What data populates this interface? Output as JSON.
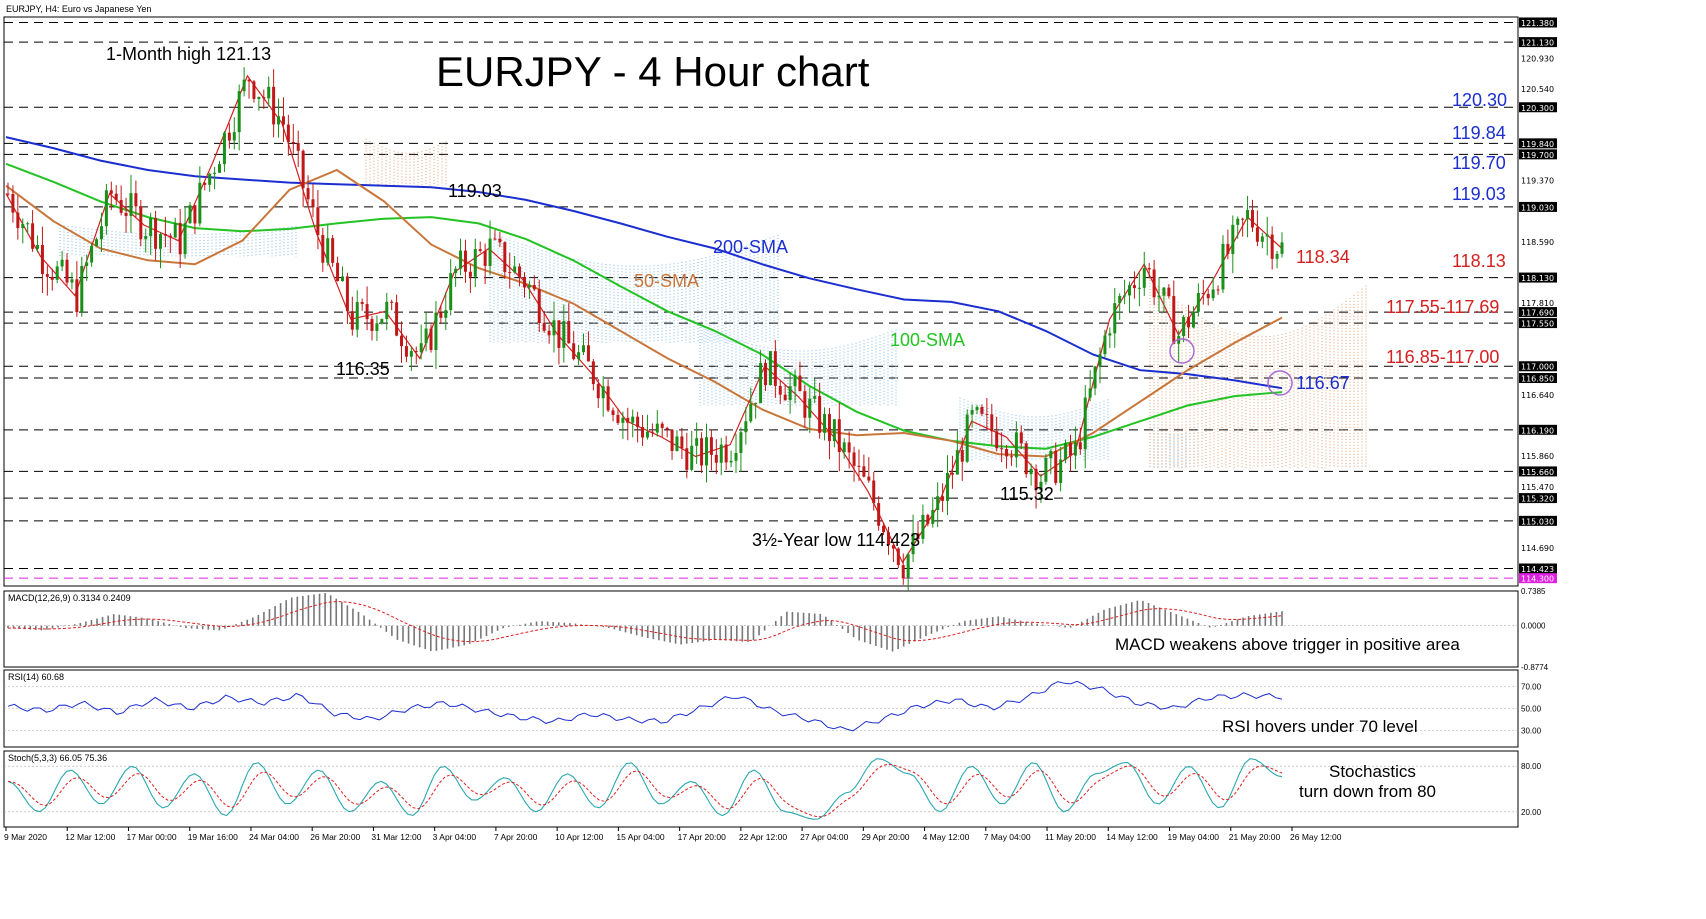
{
  "header": {
    "instrument_label": "EURJPY, H4:  Euro vs Japanese Yen"
  },
  "chart_data": [
    {
      "type": "line",
      "panel": "price",
      "title": "EURJPY - 4 Hour chart",
      "y_axis_ticks": [
        "121.380",
        "121.130",
        "120.930",
        "120.540",
        "120.300",
        "119.840",
        "119.700",
        "119.370",
        "119.030",
        "118.590",
        "118.130",
        "117.810",
        "117.690",
        "117.550",
        "117.000",
        "116.850",
        "116.640",
        "116.190",
        "115.860",
        "115.660",
        "115.470",
        "115.320",
        "115.030",
        "114.690",
        "114.423",
        "114.300"
      ],
      "highlighted_ticks": [
        "121.380",
        "121.130",
        "120.300",
        "119.840",
        "119.700",
        "119.030",
        "118.130",
        "117.690",
        "117.550",
        "117.000",
        "116.850",
        "116.190",
        "115.660",
        "115.320",
        "115.030",
        "114.423",
        "114.300"
      ],
      "ylim": [
        114.2,
        121.45
      ],
      "x_tick_labels": [
        "9 Mar 2020",
        "12 Mar 12:00",
        "17 Mar 00:00",
        "19 Mar 16:00",
        "24 Mar 04:00",
        "26 Mar 20:00",
        "31 Mar 12:00",
        "3 Apr 04:00",
        "7 Apr 20:00",
        "10 Apr 12:00",
        "15 Apr 04:00",
        "17 Apr 20:00",
        "22 Apr 12:00",
        "27 Apr 04:00",
        "29 Apr 20:00",
        "4 May 12:00",
        "7 May 04:00",
        "11 May 20:00",
        "14 May 12:00",
        "19 May 04:00",
        "21 May 20:00",
        "26 May 12:00"
      ],
      "series": [
        {
          "name": "200-SMA",
          "color": "#1b2ecf",
          "values": [
            119.92,
            119.78,
            119.62,
            119.5,
            119.42,
            119.38,
            119.34,
            119.32,
            119.3,
            119.28,
            119.22,
            119.12,
            118.98,
            118.82,
            118.65,
            118.5,
            118.3,
            118.12,
            117.98,
            117.85,
            117.82,
            117.7,
            117.45,
            117.15,
            116.95,
            116.9,
            116.82,
            116.72
          ]
        },
        {
          "name": "100-SMA",
          "color": "#22c322",
          "values": [
            119.58,
            119.35,
            119.1,
            118.9,
            118.76,
            118.72,
            118.75,
            118.82,
            118.88,
            118.9,
            118.82,
            118.62,
            118.35,
            118.02,
            117.7,
            117.45,
            117.15,
            116.75,
            116.42,
            116.18,
            116.05,
            115.98,
            115.95,
            116.1,
            116.3,
            116.5,
            116.62,
            116.67
          ]
        },
        {
          "name": "50-SMA",
          "color": "#c8763a",
          "values": [
            119.3,
            118.85,
            118.5,
            118.35,
            118.3,
            118.6,
            119.25,
            119.5,
            119.1,
            118.55,
            118.25,
            118.05,
            117.8,
            117.45,
            117.1,
            116.8,
            116.45,
            116.2,
            116.12,
            116.15,
            116.05,
            115.88,
            115.85,
            116.15,
            116.55,
            116.95,
            117.3,
            117.62
          ]
        },
        {
          "name": "Price",
          "color": "#d42020",
          "values": [
            119.2,
            118.4,
            117.9,
            119.2,
            118.8,
            118.6,
            119.6,
            120.7,
            120.1,
            118.7,
            117.6,
            117.7,
            117.1,
            118.2,
            118.5,
            118.1,
            117.4,
            116.9,
            116.3,
            116.1,
            115.85,
            116.0,
            117.0,
            116.6,
            116.1,
            115.4,
            114.5,
            115.2,
            116.3,
            116.1,
            115.6,
            115.9,
            117.6,
            118.3,
            117.4,
            118.1,
            118.9,
            118.5
          ]
        }
      ],
      "annotations": [
        "1-Month high 121.13",
        "119.03",
        "116.35",
        "200-SMA",
        "50-SMA",
        "100-SMA",
        "115.32",
        "3½-Year low 114.423"
      ],
      "right_levels": [
        {
          "label": "120.30",
          "color": "#1b2ecf"
        },
        {
          "label": "119.84",
          "color": "#1b2ecf"
        },
        {
          "label": "119.70",
          "color": "#1b2ecf"
        },
        {
          "label": "119.03",
          "color": "#1b2ecf"
        },
        {
          "label": "118.34",
          "color": "#d42020"
        },
        {
          "label": "118.13",
          "color": "#d42020"
        },
        {
          "label": "117.55-117.69",
          "color": "#d42020"
        },
        {
          "label": "116.85-117.00",
          "color": "#d42020"
        },
        {
          "label": "116.67",
          "color": "#1b2ecf"
        }
      ]
    },
    {
      "type": "bar",
      "panel": "macd",
      "label": "MACD(12,26,9) 0.3134 0.2409",
      "ticks": [
        "0.7385",
        "0.0000",
        "-0.8774"
      ],
      "ylim": [
        -0.8774,
        0.7385
      ],
      "values": [
        -0.05,
        -0.1,
        0.05,
        0.25,
        0.15,
        -0.05,
        -0.1,
        0.2,
        0.6,
        0.7,
        0.25,
        -0.3,
        -0.55,
        -0.4,
        -0.05,
        0.1,
        0.05,
        -0.05,
        -0.25,
        -0.4,
        -0.3,
        -0.35,
        0.3,
        0.25,
        -0.3,
        -0.55,
        -0.2,
        0.1,
        0.2,
        0.05,
        -0.05,
        0.35,
        0.55,
        0.25,
        -0.05,
        0.2,
        0.31
      ],
      "signal_label": "trigger",
      "caption": "MACD weakens above trigger in positive area"
    },
    {
      "type": "line",
      "panel": "rsi",
      "label": "RSI(14) 60.68",
      "ticks": [
        "70.00",
        "50.00",
        "30.00"
      ],
      "ylim": [
        15,
        85
      ],
      "values": [
        52,
        48,
        55,
        46,
        58,
        50,
        60,
        55,
        62,
        45,
        40,
        50,
        55,
        48,
        42,
        38,
        45,
        40,
        38,
        50,
        62,
        48,
        40,
        30,
        40,
        52,
        58,
        50,
        60,
        75,
        68,
        55,
        50,
        60,
        62,
        60.68
      ],
      "caption": "RSI hovers under 70 level"
    },
    {
      "type": "line",
      "panel": "stochastics",
      "label": "Stoch(5,3,3) 66.05 75.36",
      "ticks": [
        "80.00",
        "20.00"
      ],
      "ylim": [
        0,
        100
      ],
      "values": [
        60,
        20,
        75,
        30,
        80,
        25,
        70,
        15,
        85,
        30,
        75,
        20,
        60,
        15,
        80,
        35,
        65,
        20,
        70,
        25,
        85,
        30,
        60,
        15,
        75,
        20,
        10,
        45,
        90,
        70,
        20,
        80,
        30,
        85,
        20,
        70,
        85,
        30,
        80,
        25,
        90,
        66
      ],
      "caption_line1": "Stochastics",
      "caption_line2": "turn down from 80"
    }
  ]
}
